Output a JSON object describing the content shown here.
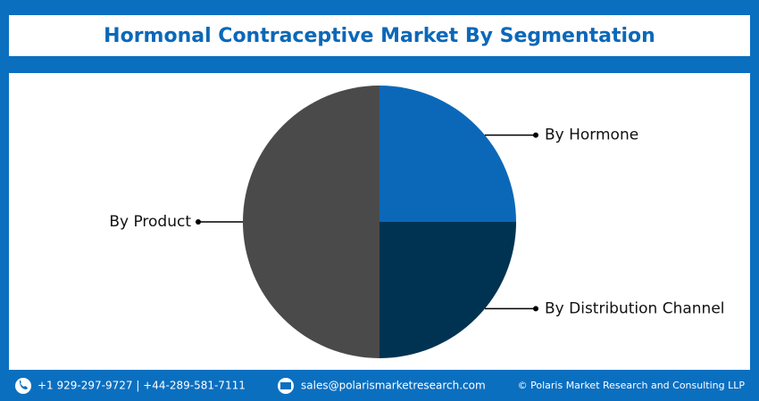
{
  "chart_data": {
    "type": "pie",
    "title": "Hormonal Contraceptive Market By Segmentation",
    "categories": [
      "By Hormone",
      "By Distribution Channel",
      "By Product"
    ],
    "values": [
      25,
      25,
      50
    ],
    "colors": [
      "#0b68b8",
      "#003352",
      "#4a4a4a"
    ]
  },
  "footer": {
    "phone": "+1 929-297-9727 | +44-289-581-7111",
    "email": "sales@polarismarketresearch.com",
    "copyright": "© Polaris Market Research and Consulting LLP"
  }
}
